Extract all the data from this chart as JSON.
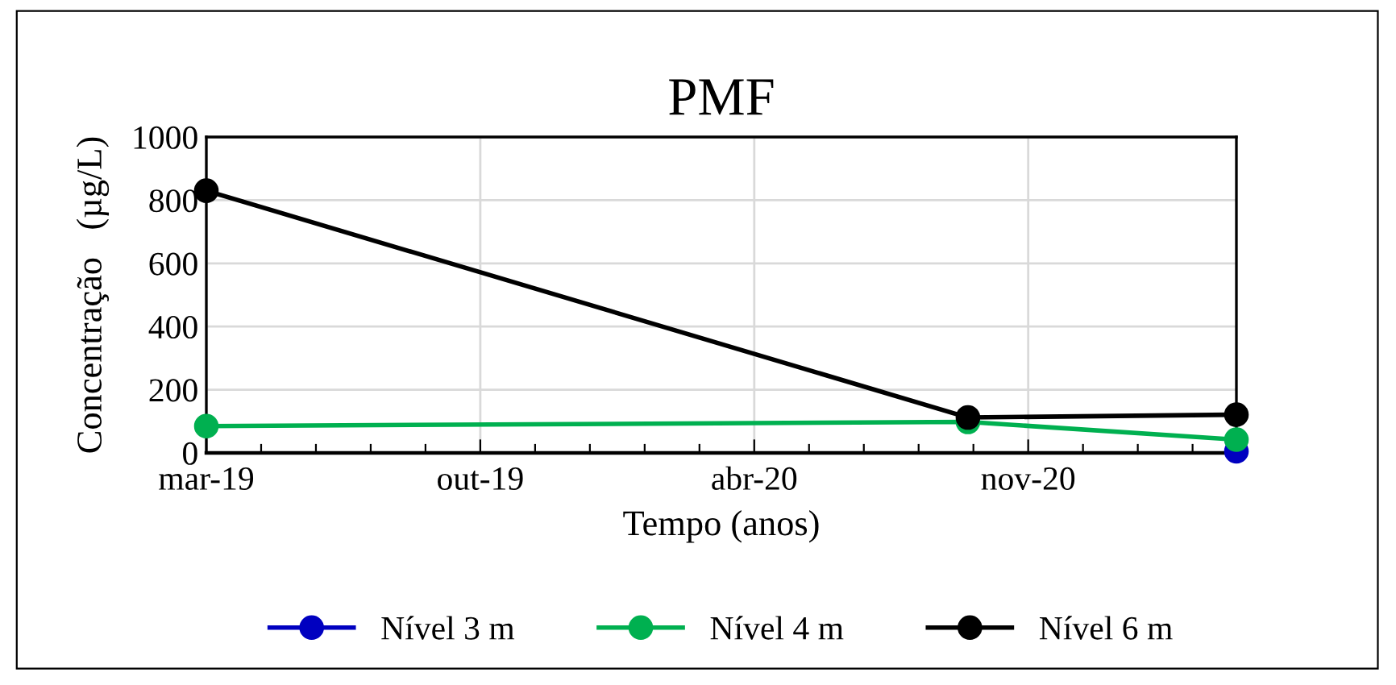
{
  "chart_data": {
    "type": "line",
    "title": "PMF",
    "xlabel": "Tempo (anos)",
    "ylabel": "Concentração   (µg/L)",
    "x": [
      "2019-03-20",
      "2020-09-26",
      "2021-04-10"
    ],
    "series": [
      {
        "name": "Nível 3 m",
        "color": "#0000c0",
        "values": [
          null,
          null,
          5
        ]
      },
      {
        "name": "Nível 4 m",
        "color": "#00b050",
        "values": [
          85,
          98,
          42
        ]
      },
      {
        "name": "Nível 6 m",
        "color": "#000000",
        "values": [
          830,
          112,
          121
        ]
      }
    ],
    "xlim": [
      "2019-03-20",
      "2021-04-10"
    ],
    "xticks": [
      {
        "value": "2019-03-20",
        "label": "mar-19"
      },
      {
        "value": "2019-04-29",
        "label": null
      },
      {
        "value": "2019-06-08",
        "label": null
      },
      {
        "value": "2019-07-18",
        "label": null
      },
      {
        "value": "2019-08-27",
        "label": null
      },
      {
        "value": "2019-10-06",
        "label": "out-19"
      },
      {
        "value": "2019-11-15",
        "label": null
      },
      {
        "value": "2019-12-25",
        "label": null
      },
      {
        "value": "2020-02-03",
        "label": null
      },
      {
        "value": "2020-03-14",
        "label": null
      },
      {
        "value": "2020-04-23",
        "label": "abr-20"
      },
      {
        "value": "2020-06-02",
        "label": null
      },
      {
        "value": "2020-07-12",
        "label": null
      },
      {
        "value": "2020-08-21",
        "label": null
      },
      {
        "value": "2020-09-30",
        "label": null
      },
      {
        "value": "2020-11-09",
        "label": "nov-20"
      },
      {
        "value": "2020-12-19",
        "label": null
      },
      {
        "value": "2021-01-28",
        "label": null
      },
      {
        "value": "2021-03-09",
        "label": null
      }
    ],
    "ylim": [
      0,
      1000
    ],
    "yticks": [
      0,
      200,
      400,
      600,
      800,
      1000
    ],
    "grid": true,
    "legend": "bottom",
    "marker": "circle",
    "line_style": "solid"
  }
}
